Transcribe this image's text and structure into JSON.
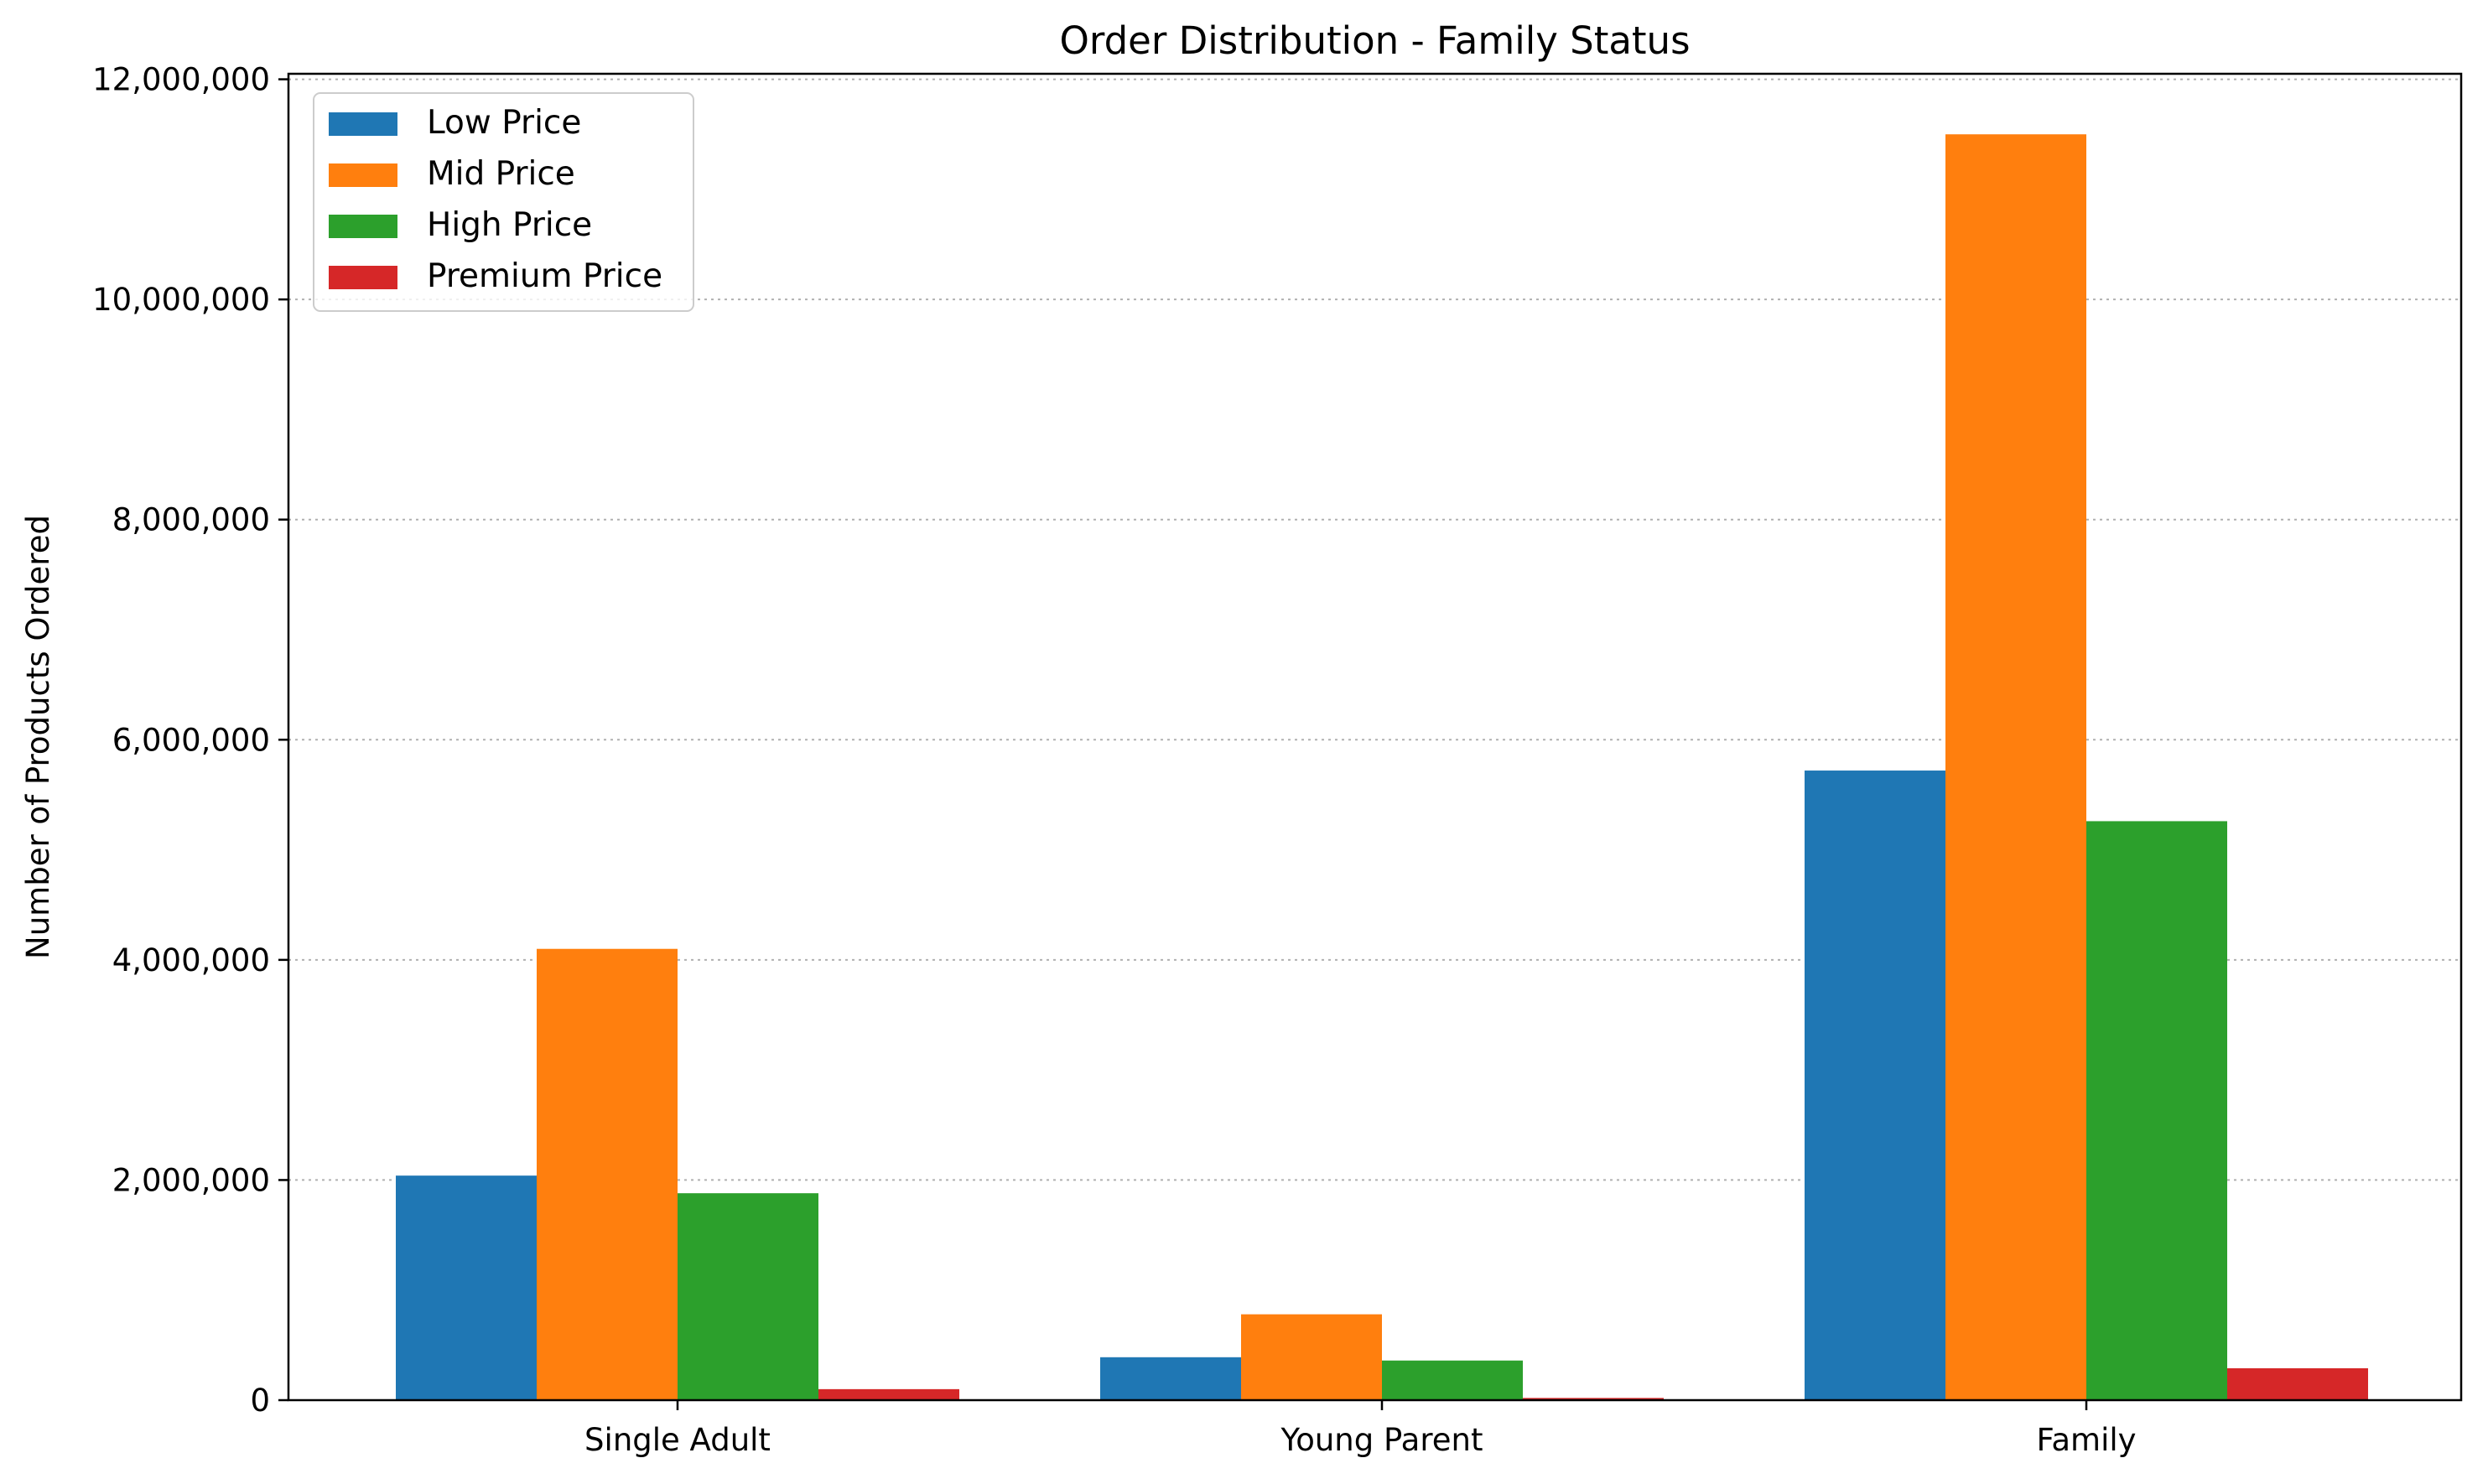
{
  "chart_data": {
    "type": "bar",
    "title": "Order Distribution - Family Status",
    "xlabel": "",
    "ylabel": "Number of Products Ordered",
    "categories": [
      "Single Adult",
      "Young Parent",
      "Family"
    ],
    "series": [
      {
        "name": "Low Price",
        "color": "#1f77b4",
        "values": [
          2040000,
          390000,
          5720000
        ]
      },
      {
        "name": "Mid Price",
        "color": "#ff7f0e",
        "values": [
          4100000,
          780000,
          11500000
        ]
      },
      {
        "name": "High Price",
        "color": "#2ca02c",
        "values": [
          1880000,
          360000,
          5260000
        ]
      },
      {
        "name": "Premium Price",
        "color": "#d62728",
        "values": [
          100000,
          20000,
          290000
        ]
      }
    ],
    "ylim": [
      0,
      12050000
    ],
    "yticks": [
      0,
      2000000,
      4000000,
      6000000,
      8000000,
      10000000,
      12000000
    ],
    "ytick_labels": [
      "0",
      "2,000,000",
      "4,000,000",
      "6,000,000",
      "8,000,000",
      "10,000,000",
      "12,000,000"
    ],
    "grid": "y-dotted",
    "legend_position": "top-left"
  }
}
